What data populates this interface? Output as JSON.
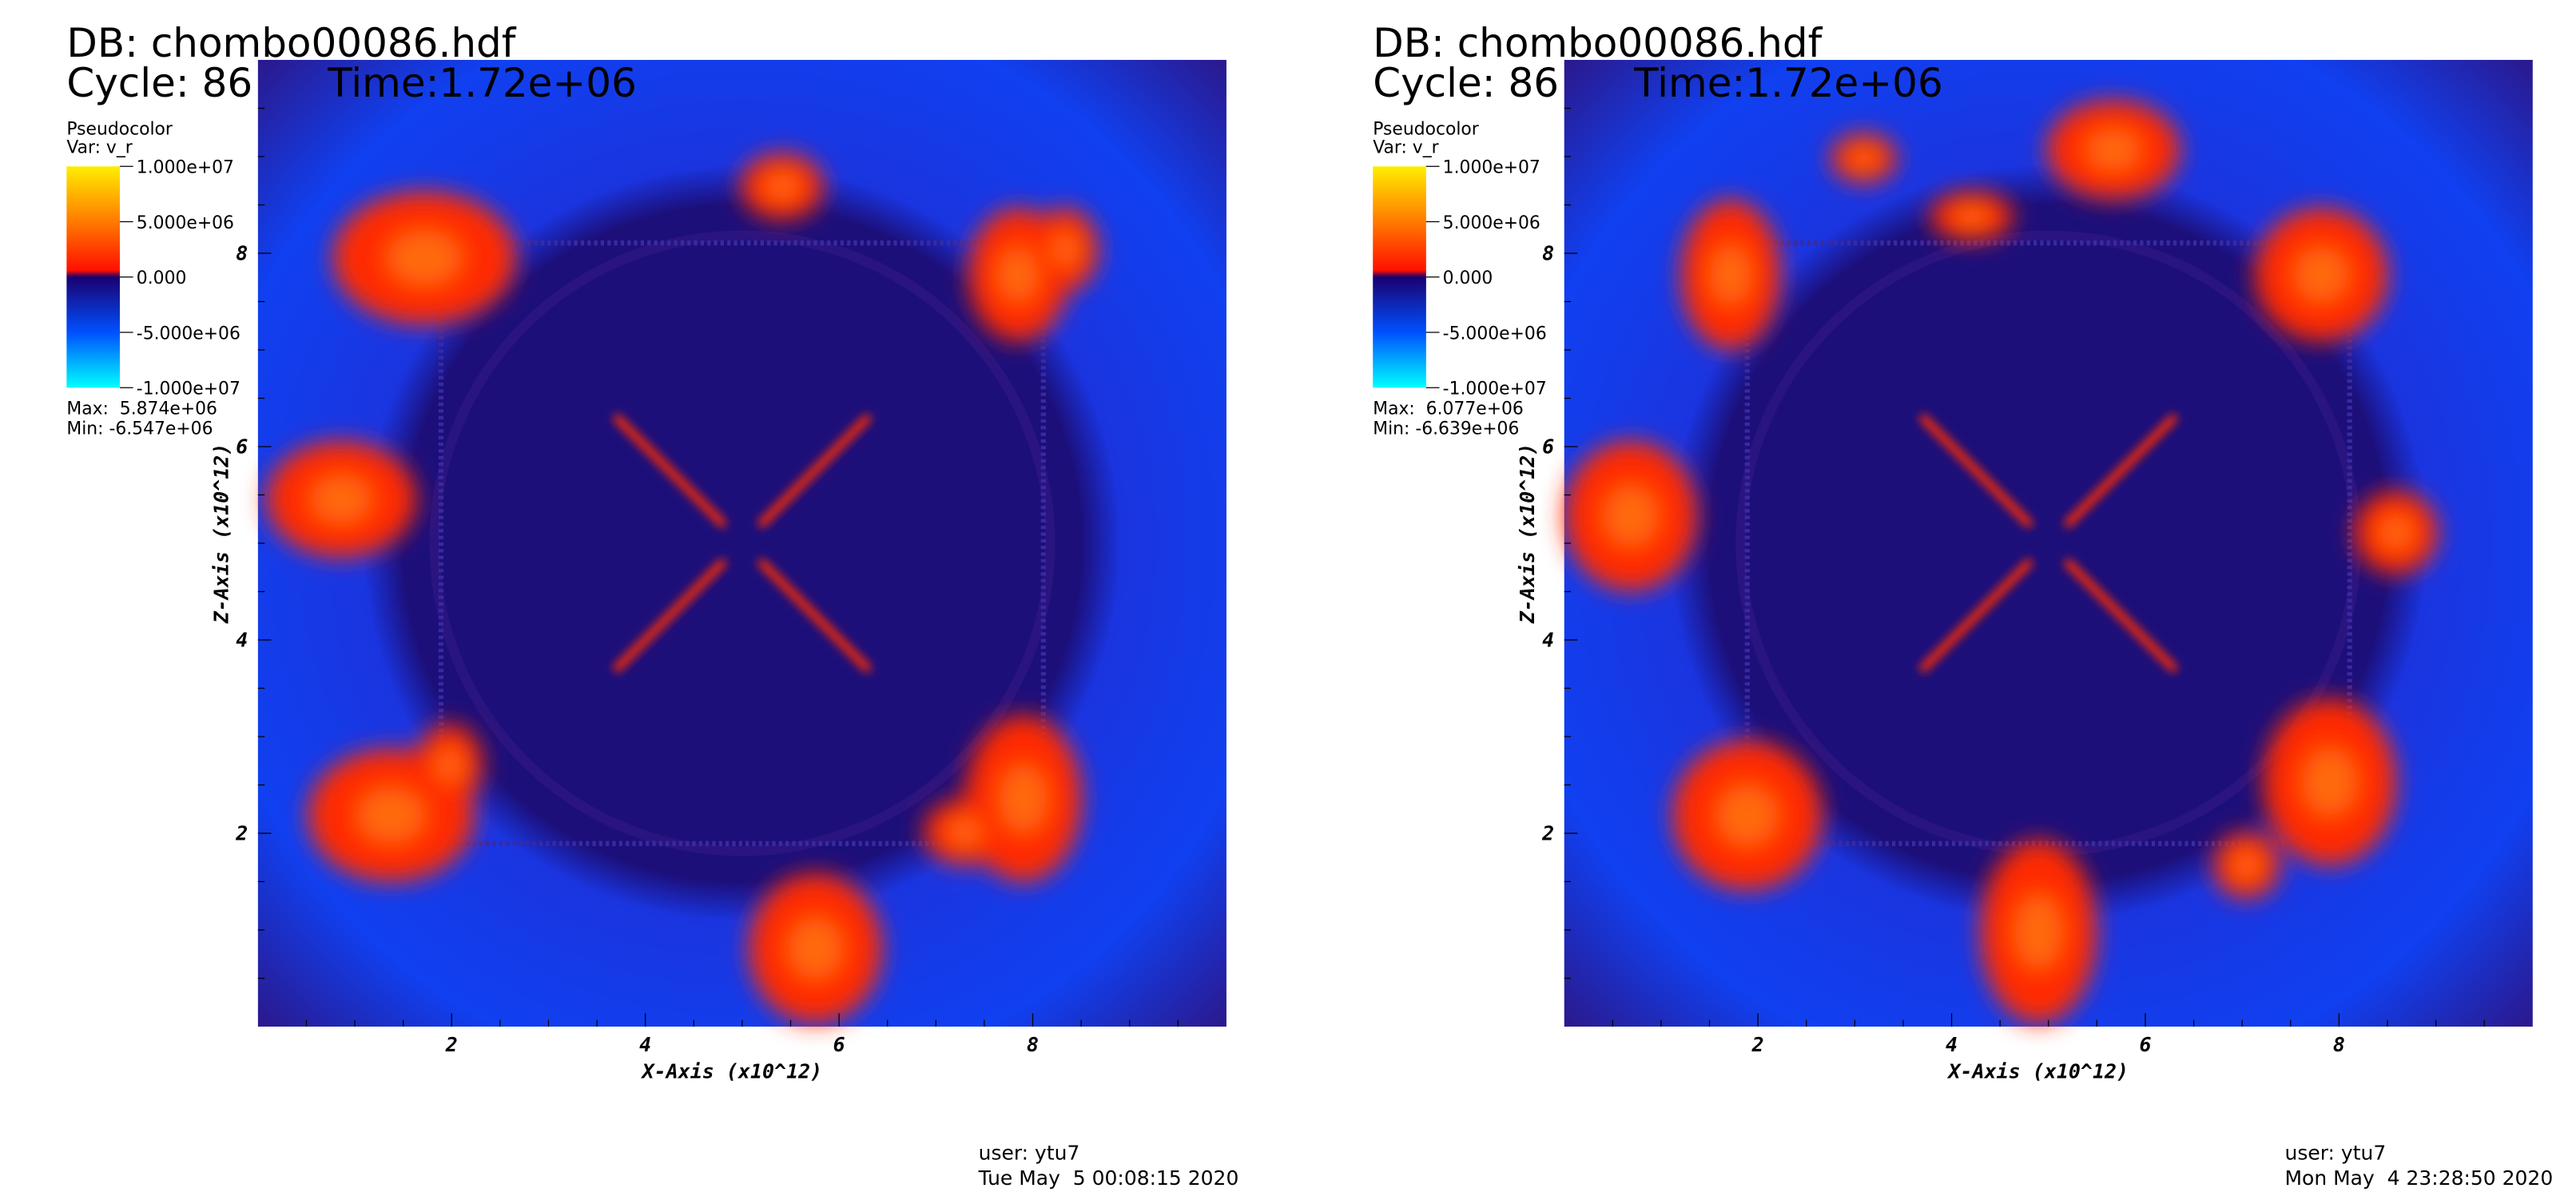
{
  "panels": [
    {
      "db": "DB: chombo00086.hdf",
      "cycle": "Cycle: 86",
      "time": "Time:1.72e+06",
      "legend": {
        "plot": "Pseudocolor",
        "var": "Var: v_r",
        "ticks": [
          "1.000e+07",
          "5.000e+06",
          "0.000",
          "-5.000e+06",
          "-1.000e+07"
        ],
        "max": "Max:  5.874e+06",
        "min": "Min: -6.547e+06"
      },
      "xticks": [
        "2",
        "4",
        "6",
        "8"
      ],
      "yticks": [
        "8",
        "6",
        "4",
        "2"
      ],
      "xlabel": "X-Axis (x10^12)",
      "ylabel": "Z-Axis (x10^12)",
      "user": "user: ytu7",
      "date": "Tue May  5 00:08:15 2020"
    },
    {
      "db": "DB: chombo00086.hdf",
      "cycle": "Cycle: 86",
      "time": "Time:1.72e+06",
      "legend": {
        "plot": "Pseudocolor",
        "var": "Var: v_r",
        "ticks": [
          "1.000e+07",
          "5.000e+06",
          "0.000",
          "-5.000e+06",
          "-1.000e+07"
        ],
        "max": "Max:  6.077e+06",
        "min": "Min: -6.639e+06"
      },
      "xticks": [
        "2",
        "4",
        "6",
        "8"
      ],
      "yticks": [
        "8",
        "6",
        "4",
        "2"
      ],
      "xlabel": "X-Axis (x10^12)",
      "ylabel": "Z-Axis (x10^12)",
      "user": "user: ytu7",
      "date": "Mon May  4 23:28:50 2020"
    }
  ]
}
